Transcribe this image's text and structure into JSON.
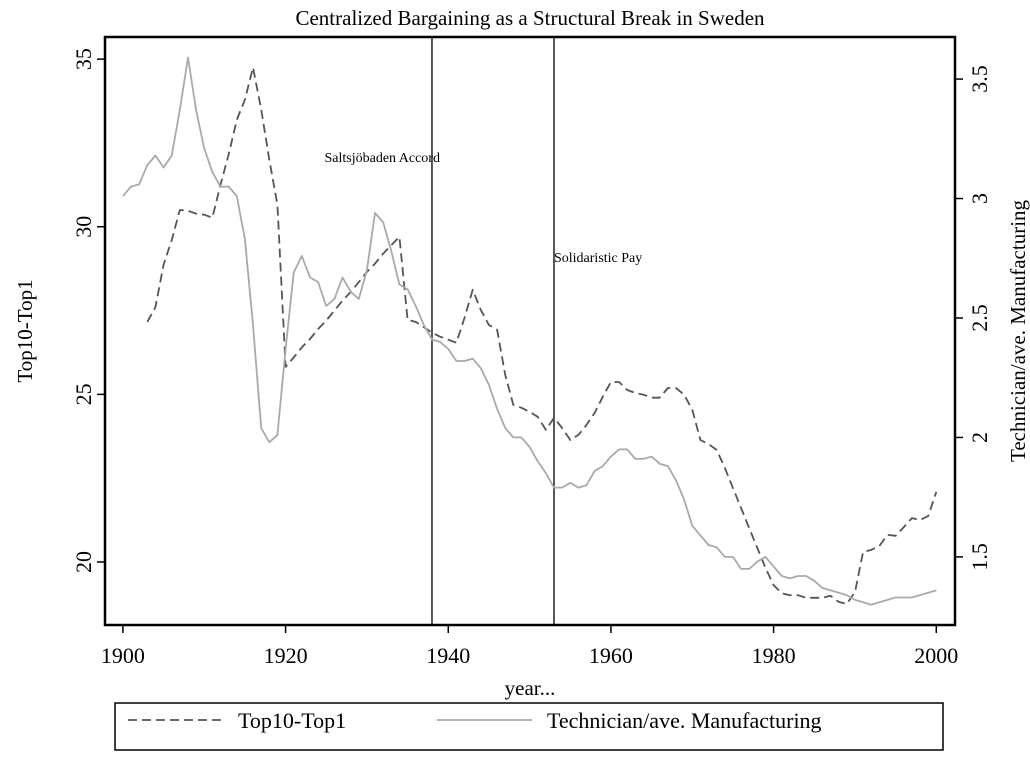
{
  "chart_data": {
    "type": "line",
    "title": "Centralized Bargaining as a Structural Break in Sweden",
    "xlabel": "year...",
    "ylabel": "Top10-Top1",
    "y2label": "Technician/ave. Manufacturing",
    "x": [
      1900,
      1901,
      1902,
      1903,
      1904,
      1905,
      1906,
      1907,
      1908,
      1909,
      1910,
      1911,
      1912,
      1913,
      1914,
      1915,
      1916,
      1917,
      1918,
      1919,
      1920,
      1921,
      1922,
      1923,
      1924,
      1925,
      1926,
      1927,
      1928,
      1929,
      1930,
      1931,
      1932,
      1933,
      1934,
      1935,
      1936,
      1937,
      1938,
      1939,
      1940,
      1941,
      1942,
      1943,
      1944,
      1945,
      1946,
      1947,
      1948,
      1949,
      1950,
      1951,
      1952,
      1953,
      1954,
      1955,
      1956,
      1957,
      1958,
      1959,
      1960,
      1961,
      1962,
      1963,
      1964,
      1965,
      1966,
      1967,
      1968,
      1969,
      1970,
      1971,
      1972,
      1973,
      1974,
      1975,
      1976,
      1977,
      1978,
      1979,
      1980,
      1981,
      1982,
      1983,
      1984,
      1985,
      1986,
      1987,
      1988,
      1989,
      1990,
      1991,
      1992,
      1993,
      1994,
      1995,
      1996,
      1997,
      1998,
      1999,
      2000
    ],
    "series": [
      {
        "name": "Top10-Top1",
        "color": "#555555",
        "dash": true,
        "axis": "y",
        "values": [
          null,
          null,
          null,
          27.16,
          27.6,
          28.87,
          29.6,
          30.5,
          30.48,
          30.39,
          30.36,
          30.27,
          31.25,
          32.15,
          33.19,
          33.79,
          34.75,
          33.5,
          32.0,
          30.66,
          25.82,
          26.1,
          26.4,
          26.65,
          26.95,
          27.2,
          27.5,
          27.8,
          28.05,
          28.35,
          28.65,
          28.9,
          29.2,
          29.45,
          29.7,
          27.22,
          27.16,
          27.0,
          26.84,
          26.72,
          26.63,
          26.54,
          27.28,
          28.12,
          27.52,
          27.07,
          26.93,
          25.58,
          24.69,
          24.6,
          24.48,
          24.33,
          23.94,
          24.3,
          24.0,
          23.64,
          23.79,
          24.09,
          24.45,
          24.93,
          25.37,
          25.37,
          25.13,
          25.04,
          24.99,
          24.9,
          24.9,
          25.19,
          25.19,
          24.99,
          24.54,
          23.64,
          23.52,
          23.34,
          22.81,
          22.21,
          21.61,
          21.01,
          20.42,
          19.82,
          19.31,
          19.07,
          19.01,
          19.01,
          18.93,
          18.93,
          18.93,
          18.99,
          18.81,
          18.75,
          19.1,
          20.3,
          20.36,
          20.48,
          20.81,
          20.78,
          21.04,
          21.31,
          21.25,
          21.37,
          22.09
        ]
      },
      {
        "name": "Technician/ave. Manufacturing",
        "color": "#aaaaaa",
        "dash": false,
        "axis": "y2",
        "values": [
          3.01,
          3.05,
          3.06,
          3.14,
          3.18,
          3.13,
          3.18,
          3.37,
          3.59,
          3.37,
          3.21,
          3.11,
          3.05,
          3.05,
          3.01,
          2.83,
          2.47,
          2.04,
          1.98,
          2.01,
          2.37,
          2.69,
          2.76,
          2.67,
          2.65,
          2.55,
          2.58,
          2.67,
          2.61,
          2.58,
          2.7,
          2.94,
          2.9,
          2.78,
          2.64,
          2.62,
          2.55,
          2.47,
          2.41,
          2.4,
          2.37,
          2.32,
          2.32,
          2.33,
          2.29,
          2.22,
          2.12,
          2.04,
          2.0,
          2.0,
          1.96,
          1.9,
          1.85,
          1.79,
          1.79,
          1.81,
          1.79,
          1.8,
          1.86,
          1.88,
          1.92,
          1.95,
          1.95,
          1.91,
          1.91,
          1.92,
          1.89,
          1.88,
          1.82,
          1.74,
          1.63,
          1.59,
          1.55,
          1.54,
          1.5,
          1.5,
          1.45,
          1.45,
          1.48,
          1.5,
          1.46,
          1.42,
          1.41,
          1.42,
          1.42,
          1.4,
          1.37,
          1.36,
          1.35,
          1.34,
          1.32,
          1.31,
          1.3,
          1.31,
          1.32,
          1.33,
          1.33,
          1.33,
          1.34,
          1.35,
          1.36
        ]
      }
    ],
    "vlines": [
      1938,
      1953
    ],
    "annotations": [
      "Saltsjöbaden Accord",
      "Solidaristic Pay"
    ],
    "xlim": [
      1897.8,
      2002.3
    ],
    "xticks": [
      1900,
      1920,
      1940,
      1960,
      1980,
      2000
    ],
    "ylim": [
      18.12,
      35.66
    ],
    "yticks": [
      20,
      25,
      30,
      35
    ],
    "y2lim": [
      1.215,
      3.676
    ],
    "y2ticks": [
      1.5,
      2,
      2.5,
      3,
      3.5
    ],
    "grid": false
  }
}
